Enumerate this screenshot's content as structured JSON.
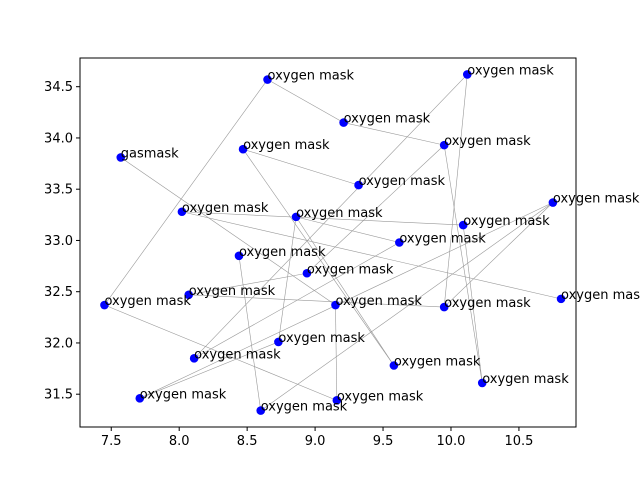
{
  "chart_data": {
    "type": "scatter",
    "title": "",
    "xlabel": "",
    "ylabel": "",
    "xlim": [
      7.27,
      10.92
    ],
    "ylim": [
      31.18,
      34.78
    ],
    "xticks": [
      7.5,
      8.0,
      8.5,
      9.0,
      9.5,
      10.0,
      10.5
    ],
    "yticks": [
      31.5,
      32.0,
      32.5,
      33.0,
      33.5,
      34.0,
      34.5
    ],
    "xtick_labels": [
      "7.5",
      "8.0",
      "8.5",
      "9.0",
      "9.5",
      "10.0",
      "10.5"
    ],
    "ytick_labels": [
      "31.5",
      "32.0",
      "32.5",
      "33.0",
      "33.5",
      "34.0",
      "34.5"
    ],
    "grid": false,
    "point_color": "#0000ff",
    "edge_color": "#999999",
    "points": [
      {
        "x": 8.65,
        "y": 34.57,
        "label": "oxygen mask"
      },
      {
        "x": 10.12,
        "y": 34.62,
        "label": "oxygen mask"
      },
      {
        "x": 9.21,
        "y": 34.15,
        "label": "oxygen mask"
      },
      {
        "x": 7.57,
        "y": 33.81,
        "label": "gasmask"
      },
      {
        "x": 8.47,
        "y": 33.89,
        "label": "oxygen mask"
      },
      {
        "x": 9.95,
        "y": 33.93,
        "label": "oxygen mask"
      },
      {
        "x": 9.32,
        "y": 33.54,
        "label": "oxygen mask"
      },
      {
        "x": 10.75,
        "y": 33.37,
        "label": "oxygen mask"
      },
      {
        "x": 8.02,
        "y": 33.28,
        "label": "oxygen mask"
      },
      {
        "x": 8.86,
        "y": 33.23,
        "label": "oxygen mask"
      },
      {
        "x": 10.09,
        "y": 33.15,
        "label": "oxygen mask"
      },
      {
        "x": 9.62,
        "y": 32.98,
        "label": "oxygen mask"
      },
      {
        "x": 8.44,
        "y": 32.85,
        "label": "oxygen mask"
      },
      {
        "x": 8.94,
        "y": 32.68,
        "label": "oxygen mask"
      },
      {
        "x": 8.07,
        "y": 32.47,
        "label": "oxygen mask"
      },
      {
        "x": 10.81,
        "y": 32.43,
        "label": "oxygen mask"
      },
      {
        "x": 7.45,
        "y": 32.37,
        "label": "oxygen mask"
      },
      {
        "x": 9.15,
        "y": 32.37,
        "label": "oxygen mask"
      },
      {
        "x": 9.95,
        "y": 32.35,
        "label": "oxygen mask"
      },
      {
        "x": 8.73,
        "y": 32.01,
        "label": "oxygen mask"
      },
      {
        "x": 8.11,
        "y": 31.85,
        "label": "oxygen mask"
      },
      {
        "x": 9.58,
        "y": 31.78,
        "label": "oxygen mask"
      },
      {
        "x": 10.23,
        "y": 31.61,
        "label": "oxygen mask"
      },
      {
        "x": 7.71,
        "y": 31.46,
        "label": "oxygen mask"
      },
      {
        "x": 9.16,
        "y": 31.44,
        "label": "oxygen mask"
      },
      {
        "x": 8.6,
        "y": 31.34,
        "label": "oxygen mask"
      }
    ],
    "edges": [
      [
        0,
        16
      ],
      [
        0,
        2
      ],
      [
        2,
        5
      ],
      [
        5,
        22
      ],
      [
        1,
        18
      ],
      [
        1,
        20
      ],
      [
        3,
        17
      ],
      [
        4,
        6
      ],
      [
        4,
        21
      ],
      [
        8,
        10
      ],
      [
        8,
        15
      ],
      [
        9,
        19
      ],
      [
        9,
        11
      ],
      [
        11,
        20
      ],
      [
        12,
        25
      ],
      [
        13,
        14
      ],
      [
        13,
        5
      ],
      [
        14,
        18
      ],
      [
        16,
        24
      ],
      [
        17,
        24
      ],
      [
        7,
        18
      ],
      [
        7,
        23
      ],
      [
        7,
        25
      ],
      [
        10,
        22
      ],
      [
        19,
        23
      ],
      [
        21,
        9
      ]
    ]
  }
}
